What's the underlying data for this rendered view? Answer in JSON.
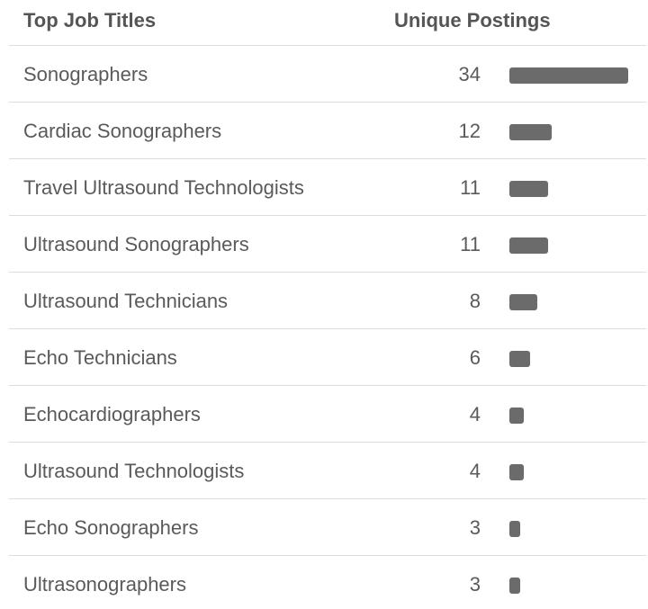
{
  "header": {
    "title": "Top Job Titles",
    "count": "Unique Postings"
  },
  "rows": [
    {
      "title": "Sonographers",
      "count": 34
    },
    {
      "title": "Cardiac Sonographers",
      "count": 12
    },
    {
      "title": "Travel Ultrasound Technologists",
      "count": 11
    },
    {
      "title": "Ultrasound Sonographers",
      "count": 11
    },
    {
      "title": "Ultrasound Technicians",
      "count": 8
    },
    {
      "title": "Echo Technicians",
      "count": 6
    },
    {
      "title": "Echocardiographers",
      "count": 4
    },
    {
      "title": "Ultrasound Technologists",
      "count": 4
    },
    {
      "title": "Echo Sonographers",
      "count": 3
    },
    {
      "title": "Ultrasonographers",
      "count": 3
    }
  ]
}
